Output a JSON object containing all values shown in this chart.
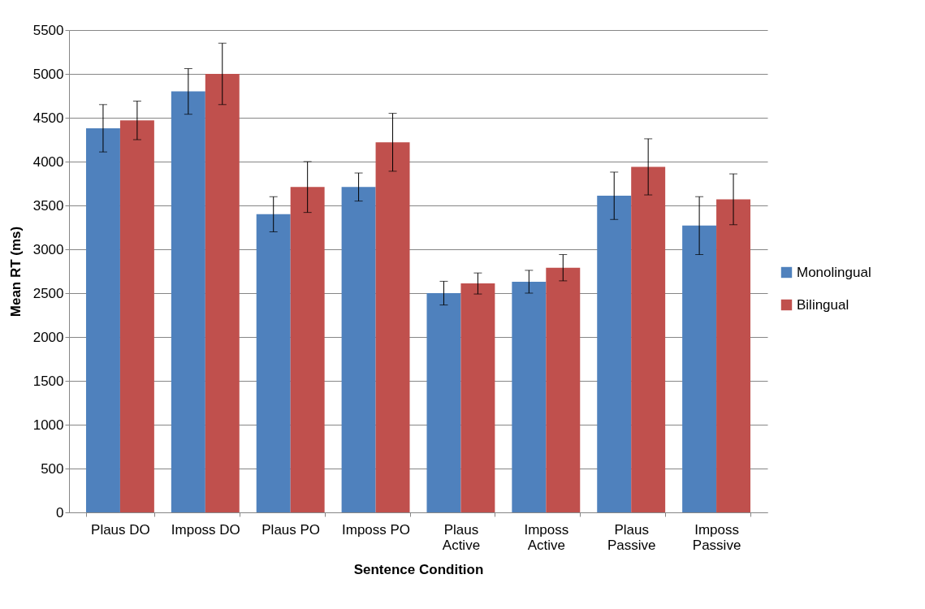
{
  "chart_data": {
    "type": "bar",
    "xlabel": "Sentence Condition",
    "ylabel": "Mean RT (ms)",
    "categories": [
      "Plaus DO",
      "Imposs DO",
      "Plaus PO",
      "Imposs PO",
      "Plaus Active",
      "Imposs Active",
      "Plaus Passive",
      "Imposs Passive"
    ],
    "series": [
      {
        "name": "Monolingual",
        "color": "#4f81bd",
        "values": [
          4380,
          4800,
          3400,
          3710,
          2500,
          2630,
          3610,
          3270
        ],
        "errors": [
          270,
          260,
          200,
          160,
          135,
          130,
          270,
          330
        ]
      },
      {
        "name": "Bilingual",
        "color": "#c0504d",
        "values": [
          4470,
          5000,
          3710,
          4220,
          2610,
          2790,
          3940,
          3570
        ],
        "errors": [
          220,
          350,
          290,
          330,
          120,
          150,
          320,
          290
        ]
      }
    ],
    "ylim": [
      0,
      5500
    ],
    "yticks": [
      0,
      500,
      1000,
      1500,
      2000,
      2500,
      3000,
      3500,
      4000,
      4500,
      5000,
      5500
    ],
    "grid": "y",
    "legend": "right"
  }
}
